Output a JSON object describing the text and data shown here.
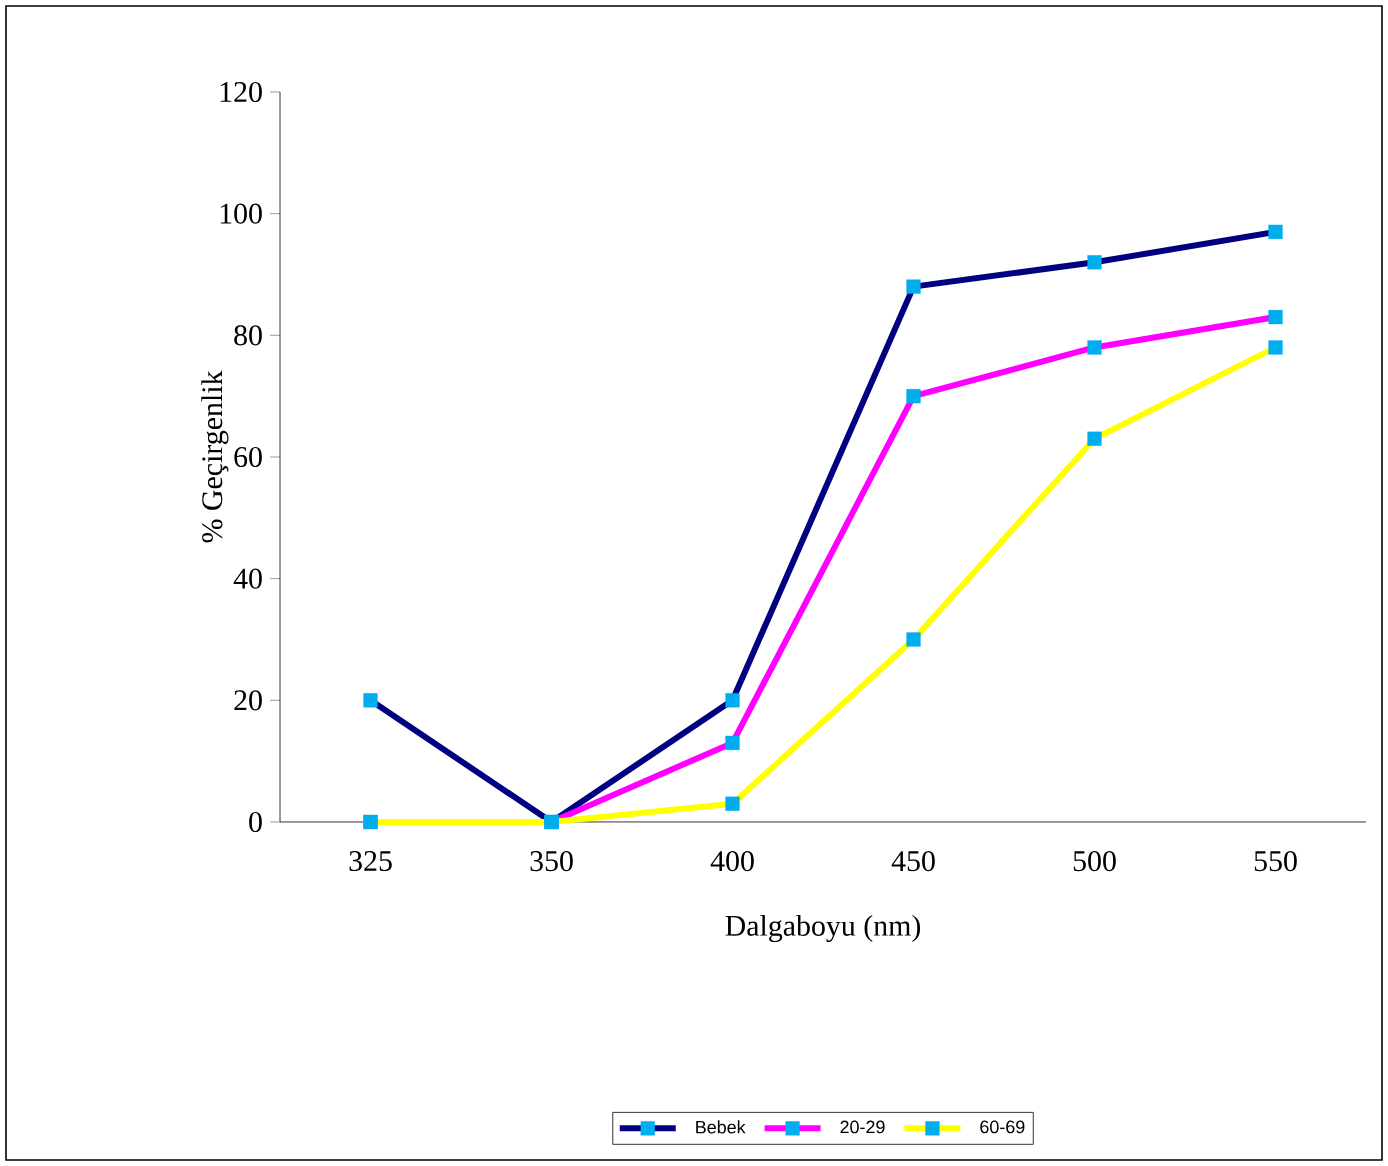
{
  "chart_data": {
    "type": "line",
    "xlabel": "Dalgaboyu (nm)",
    "ylabel": "% Geçirgenlik",
    "categories": [
      "325",
      "350",
      "400",
      "450",
      "500",
      "550"
    ],
    "series": [
      {
        "name": "Bebek",
        "color": "#000080",
        "values": [
          20,
          0,
          20,
          88,
          92,
          97
        ]
      },
      {
        "name": "20-29",
        "color": "#ff00ff",
        "values": [
          0,
          0,
          13,
          70,
          78,
          83
        ]
      },
      {
        "name": "60-69",
        "color": "#ffff00",
        "values": [
          0,
          0,
          3,
          30,
          63,
          78
        ]
      }
    ],
    "ylim": [
      0,
      120
    ],
    "yticks": [
      0,
      20,
      40,
      60,
      80,
      100,
      120
    ],
    "marker": "square",
    "line_style": "solid",
    "grid": false,
    "legend": "bottom"
  }
}
